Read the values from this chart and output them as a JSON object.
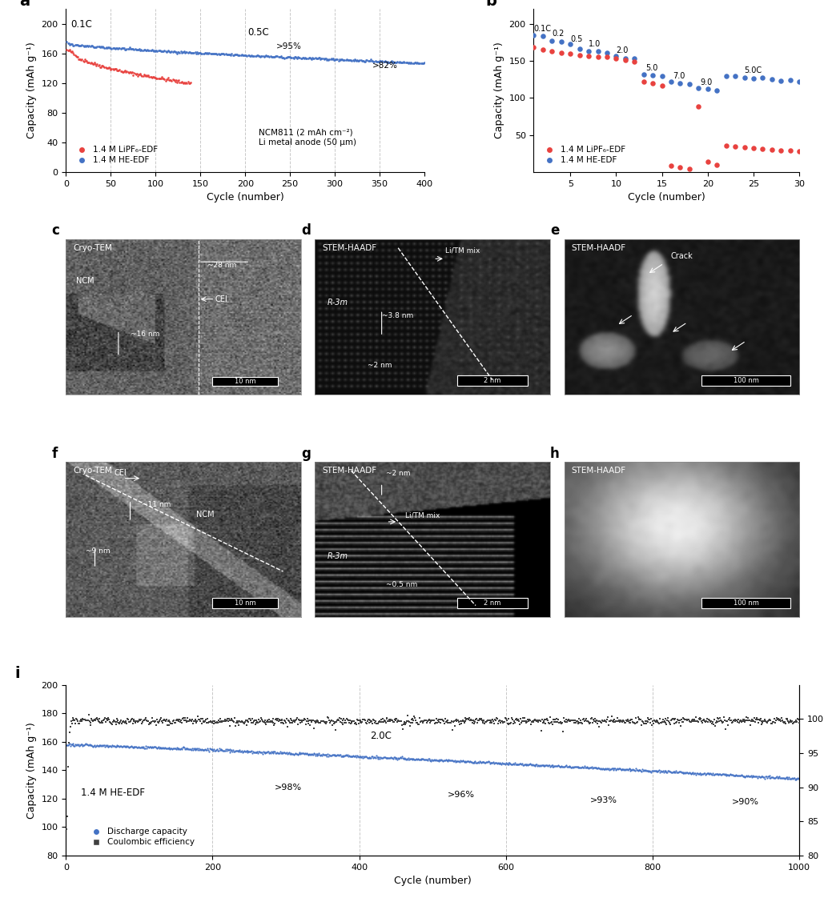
{
  "panel_a": {
    "xlabel": "Cycle (number)",
    "ylabel": "Capacity (mAh g⁻¹)",
    "xlim": [
      0,
      400
    ],
    "ylim": [
      0,
      220
    ],
    "yticks": [
      0,
      40,
      80,
      120,
      160,
      200
    ],
    "xticks": [
      0,
      50,
      100,
      150,
      200,
      250,
      300,
      350,
      400
    ],
    "red_label": "1.4 M LiPF₆-EDF",
    "blue_label": "1.4 M HE-EDF",
    "annotation_01C": "0.1C",
    "annotation_05C": "0.5C",
    "annotation_95": ">95%",
    "annotation_82": ">82%",
    "note1": "NCM811 (2 mAh cm⁻²)",
    "note2": "Li metal anode (50 μm)",
    "red_color": "#e8423f",
    "blue_color": "#4472c4",
    "grid_color": "#c8c8c8"
  },
  "panel_b": {
    "xlabel": "Cycle (number)",
    "ylabel": "Capacity (mAh g⁻¹)",
    "xlim": [
      1,
      30
    ],
    "ylim": [
      0,
      220
    ],
    "yticks": [
      50,
      100,
      150,
      200
    ],
    "xticks": [
      5,
      10,
      15,
      20,
      25,
      30
    ],
    "red_label": "1.4 M LiPF₆-EDF",
    "blue_label": "1.4 M HE-EDF",
    "red_color": "#e8423f",
    "blue_color": "#4472c4"
  },
  "panel_i": {
    "xlabel": "Cycle (number)",
    "ylabel_left": "Capacity (mAh g⁻¹)",
    "ylabel_right": "Coulombic efficiency (%)",
    "xlim": [
      0,
      1000
    ],
    "ylim_left": [
      80,
      200
    ],
    "ylim_right": [
      80,
      105
    ],
    "yticks_left": [
      80,
      100,
      120,
      140,
      160,
      180,
      200
    ],
    "yticks_right": [
      80,
      85,
      90,
      95,
      100
    ],
    "xticks": [
      0,
      200,
      400,
      600,
      800,
      1000
    ],
    "annotation_2C": "2.0C",
    "annotation_98": ">98%",
    "annotation_96": ">96%",
    "annotation_93": ">93%",
    "annotation_90": ">90%",
    "note": "1.4 M HE-EDF",
    "blue_label": "Discharge capacity",
    "gray_label": "Coulombic efficiency",
    "blue_color": "#4472c4",
    "gray_color": "#404040",
    "grid_color": "#c8c8c8"
  }
}
